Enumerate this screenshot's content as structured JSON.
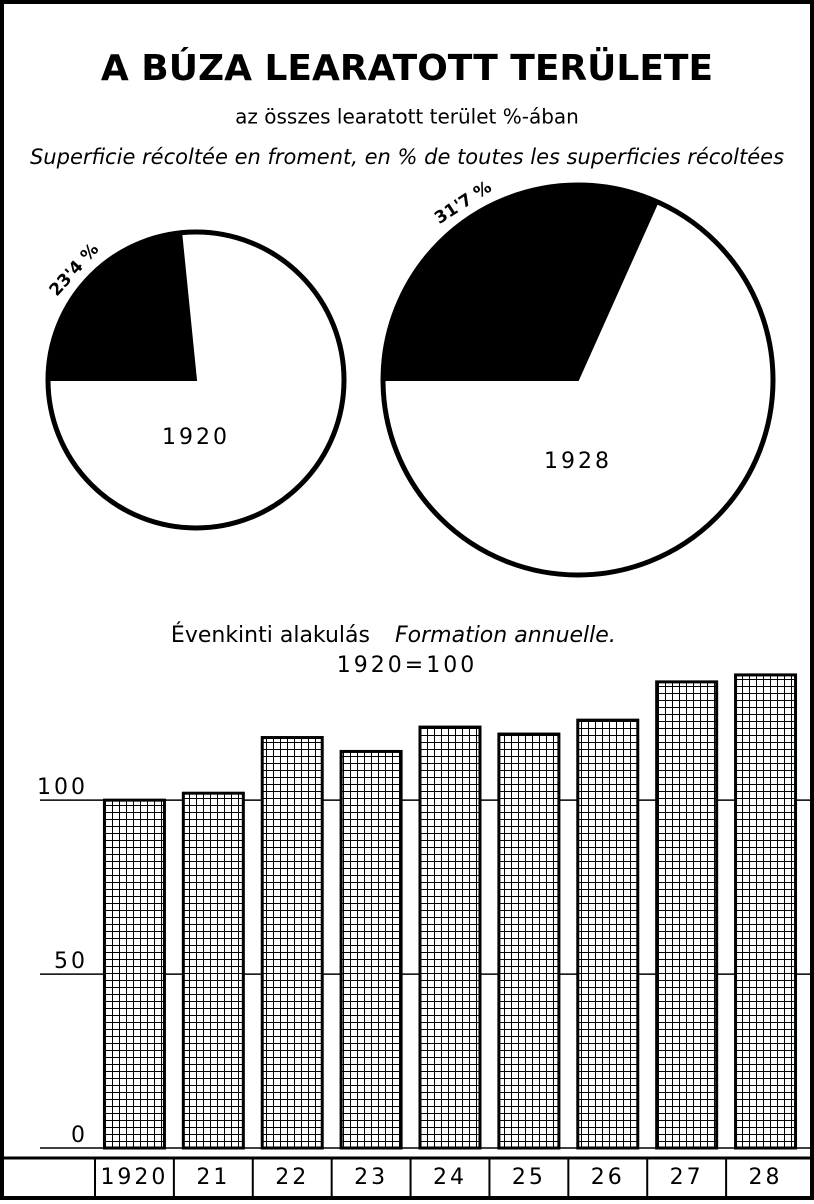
{
  "header": {
    "title": "A BÚZA LEARATOTT TERÜLETE",
    "subtitle": "az összes learatott terület %-ában",
    "subtitle_fr": "Superficie récoltée en froment, en % de toutes les superficies récoltées"
  },
  "chart_data": [
    {
      "type": "pie",
      "label": "1920",
      "values": [
        23.4
      ],
      "value_labels": [
        "23'4 %"
      ],
      "colors": [
        "#000000"
      ]
    },
    {
      "type": "pie",
      "label": "1928",
      "values": [
        31.7
      ],
      "value_labels": [
        "31'7 %"
      ],
      "colors": [
        "#000000"
      ]
    },
    {
      "type": "bar",
      "title": "Évenkinti alakulás",
      "title_fr": "Formation annuelle.",
      "note": "1920=100",
      "categories": [
        "1920",
        "21",
        "22",
        "23",
        "24",
        "25",
        "26",
        "27",
        "28"
      ],
      "values": [
        100,
        102,
        118,
        114,
        121,
        119,
        123,
        134,
        136
      ],
      "color": "#000000",
      "ylim": [
        0,
        140
      ],
      "yticks": [
        0,
        50,
        100
      ],
      "grid": true
    }
  ]
}
